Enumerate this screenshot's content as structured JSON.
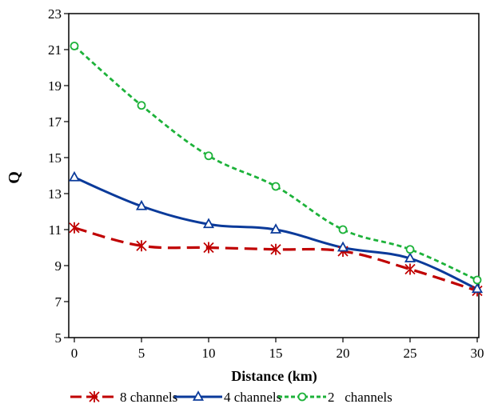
{
  "chart_data": {
    "type": "line",
    "title": "",
    "xlabel": "Distance  (km)",
    "ylabel": "Q",
    "xlim": [
      0,
      30
    ],
    "ylim": [
      5,
      23
    ],
    "xticks": [
      "0",
      "5",
      "10",
      "15",
      "20",
      "25",
      "30"
    ],
    "yticks": [
      "5",
      "7",
      "9",
      "11",
      "13",
      "15",
      "17",
      "19",
      "21",
      "23"
    ],
    "grid": false,
    "legend_position": "bottom",
    "x": [
      0,
      5,
      10,
      15,
      20,
      25,
      30
    ],
    "series": [
      {
        "name": "8 channels",
        "values": [
          11.1,
          10.1,
          10.0,
          9.9,
          9.8,
          8.8,
          7.6
        ],
        "color": "#c00000",
        "marker": "asterisk",
        "dash": "16 8"
      },
      {
        "name": "4 channels",
        "values": [
          13.9,
          12.3,
          11.3,
          11.0,
          10.0,
          9.4,
          7.7
        ],
        "color": "#0a3a9a",
        "marker": "triangle",
        "dash": ""
      },
      {
        "name": "2   channels",
        "values": [
          21.2,
          17.9,
          15.1,
          13.4,
          11.0,
          9.9,
          8.2
        ],
        "color": "#1db23a",
        "marker": "circle",
        "dash": "6 4"
      }
    ]
  }
}
